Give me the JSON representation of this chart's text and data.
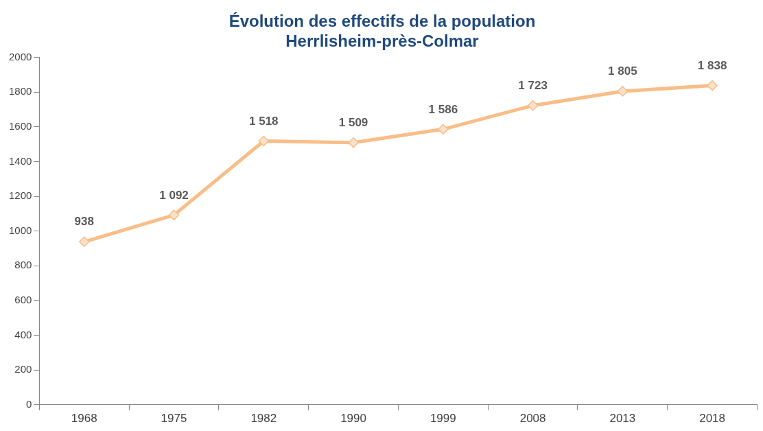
{
  "chart_data": {
    "type": "line",
    "title": "Évolution des effectifs de la population",
    "subtitle": "Herrlisheim-près-Colmar",
    "categories": [
      "1968",
      "1975",
      "1982",
      "1990",
      "1999",
      "2008",
      "2013",
      "2018"
    ],
    "series": [
      {
        "color": "#f9bd87",
        "values": [
          938,
          1092,
          1518,
          1509,
          1586,
          1723,
          1805,
          1838
        ],
        "value_labels": [
          "938",
          "1 092",
          "1 518",
          "1 509",
          "1 586",
          "1 723",
          "1 805",
          "1 838"
        ]
      }
    ],
    "ylim": [
      0,
      2000
    ],
    "yticks": [
      0,
      200,
      400,
      600,
      800,
      1000,
      1200,
      1400,
      1600,
      1800,
      2000
    ],
    "grid": false,
    "legend": false,
    "marker": "diamond",
    "line_style": "solid"
  }
}
